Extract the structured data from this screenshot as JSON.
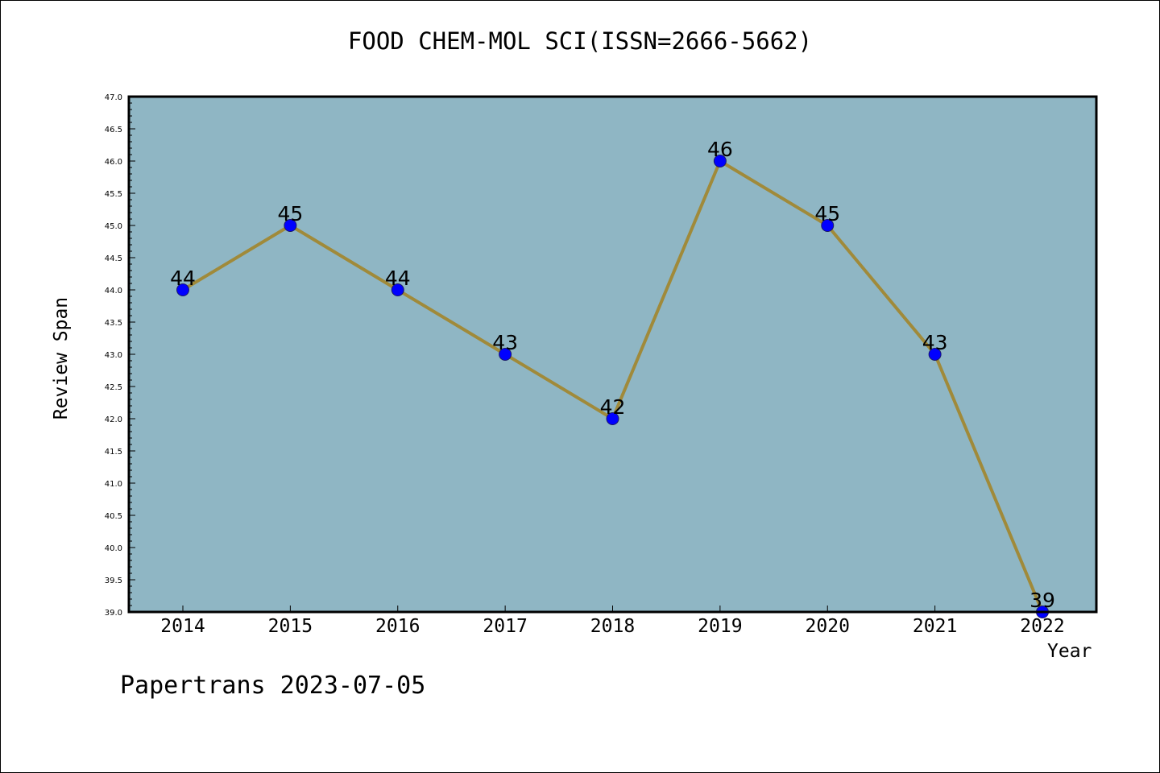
{
  "chart_data": {
    "type": "line",
    "title": "FOOD CHEM-MOL SCI(ISSN=2666-5662)",
    "xlabel": "Year",
    "ylabel": "Review Span",
    "categories": [
      "2014",
      "2015",
      "2016",
      "2017",
      "2018",
      "2019",
      "2020",
      "2021",
      "2022"
    ],
    "series": [
      {
        "values": [
          44,
          45,
          44,
          43,
          42,
          46,
          45,
          43,
          39
        ]
      }
    ],
    "data_labels": [
      "44",
      "45",
      "44",
      "43",
      "42",
      "46",
      "45",
      "43",
      "39"
    ],
    "ylim": [
      39.0,
      47.0
    ],
    "yticks": [
      "39.0",
      "39.5",
      "40.0",
      "40.5",
      "41.0",
      "41.5",
      "42.0",
      "42.5",
      "43.0",
      "43.5",
      "44.0",
      "44.5",
      "45.0",
      "45.5",
      "46.0",
      "46.5",
      "47.0"
    ],
    "grid": false,
    "colors": {
      "plot_background": "#8fb6c4",
      "line": "#a08a3a",
      "marker": "#0000ff"
    }
  },
  "footer": "Papertrans 2023-07-05"
}
